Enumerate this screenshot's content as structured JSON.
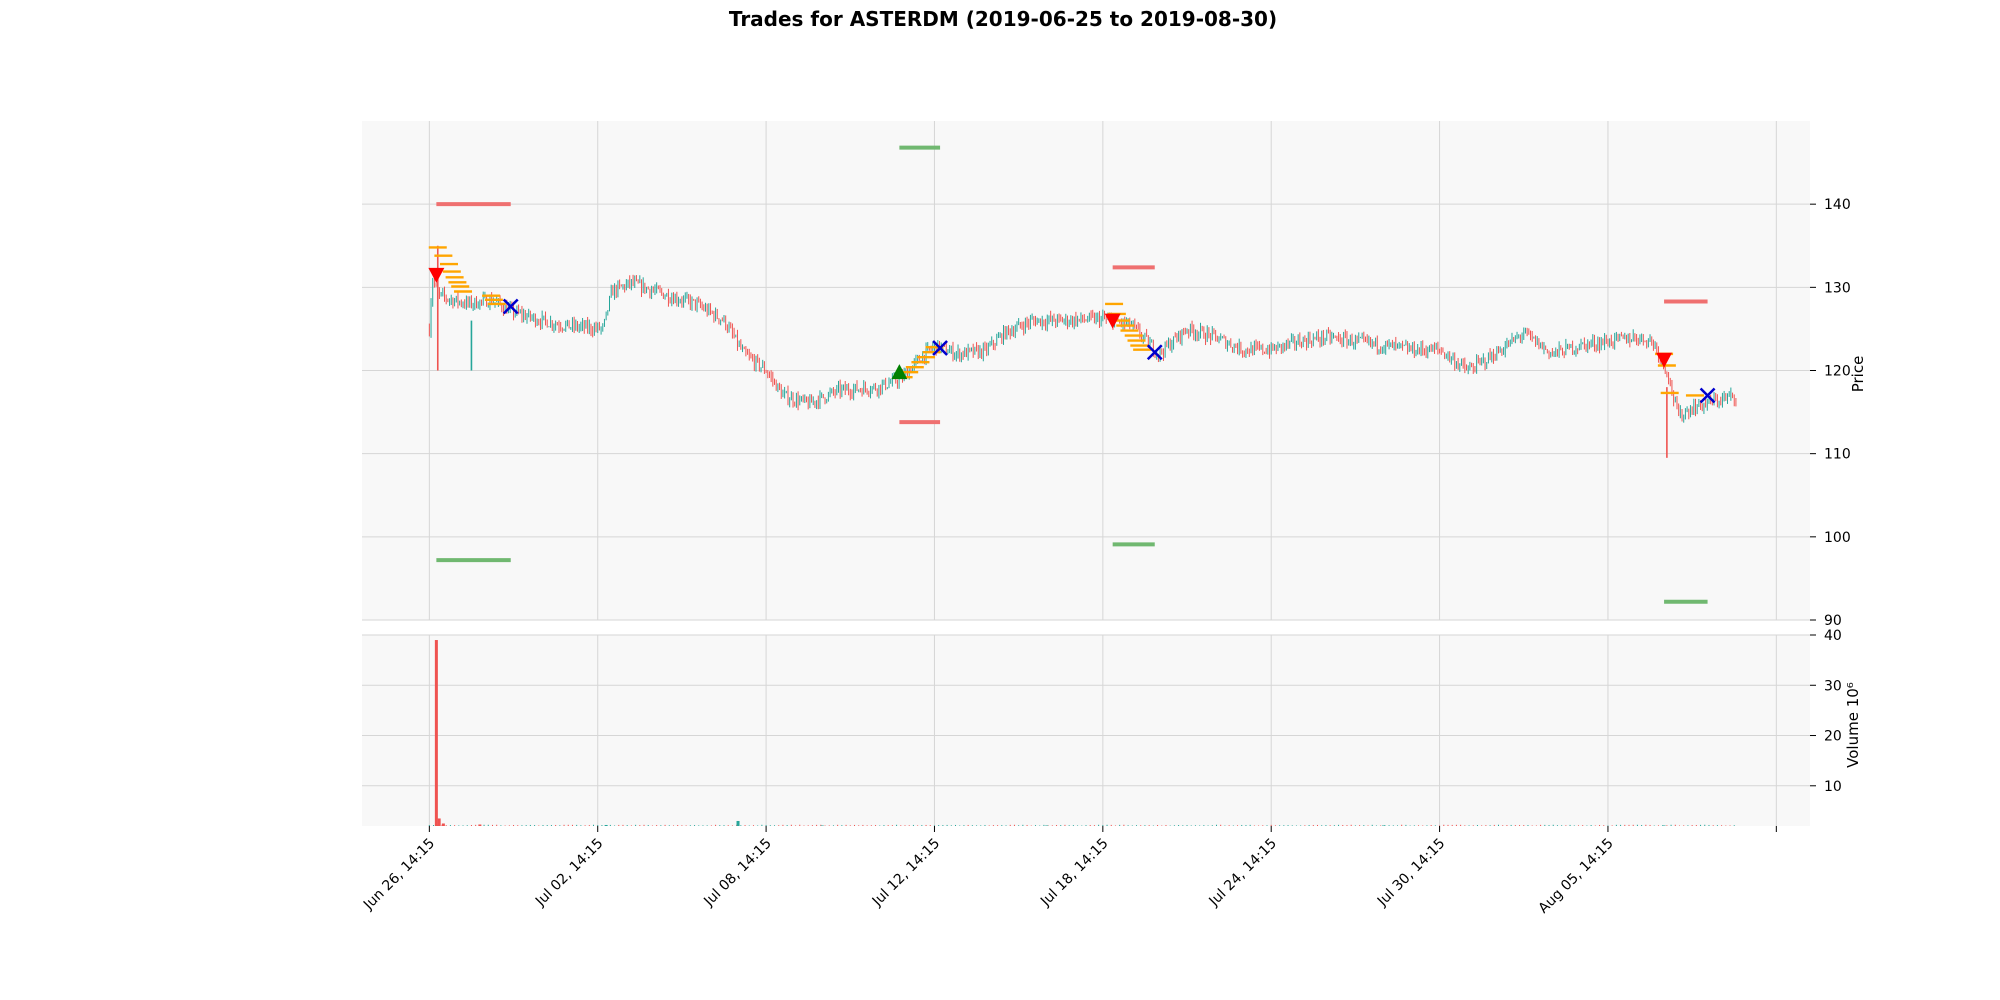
{
  "chart_data": {
    "type": "candlestick",
    "title": "Trades for ASTERDM (2019-06-25 to 2019-08-30)",
    "x_axis": {
      "ticks": [
        "Jun 26, 14:15",
        "Jul 02, 14:15",
        "Jul 08, 14:15",
        "Jul 12, 14:15",
        "Jul 18, 14:15",
        "Jul 24, 14:15",
        "Jul 30, 14:15",
        "Aug 05, 14:15",
        ""
      ],
      "tick_positions_days": [
        0,
        6,
        12,
        18,
        24,
        30,
        36,
        42,
        48
      ],
      "range_days": [
        -2.4,
        49.2
      ]
    },
    "price_panel": {
      "ylabel": "Price",
      "ylim": [
        90,
        150
      ],
      "yticks": [
        90,
        100,
        110,
        120,
        130,
        140
      ],
      "grid": true
    },
    "volume_panel": {
      "ylabel": "Volume  10⁶",
      "ylim": [
        2,
        40
      ],
      "yticks": [
        10,
        20,
        30,
        40
      ],
      "grid": true
    },
    "colors": {
      "up": "#26a69a",
      "down": "#ef5350",
      "entry_long": "#008000",
      "entry_short": "#ff0000",
      "exit": "#0000cd",
      "ladder": "#ffa500",
      "stop_loss": "#ef7070",
      "take_profit": "#70b870",
      "background": "#f8f8f8",
      "grid": "#d6d6d6"
    },
    "price_path": [
      [
        0,
        125
      ],
      [
        0.1,
        131
      ],
      [
        0.35,
        129
      ],
      [
        0.8,
        128.5
      ],
      [
        1.4,
        128
      ],
      [
        2.2,
        128.5
      ],
      [
        3.0,
        127
      ],
      [
        4.0,
        126
      ],
      [
        5.0,
        125.3
      ],
      [
        6.2,
        125
      ],
      [
        6.5,
        129.5
      ],
      [
        7.2,
        130.5
      ],
      [
        8.5,
        129
      ],
      [
        9.5,
        128
      ],
      [
        10.5,
        126
      ],
      [
        11.2,
        122
      ],
      [
        12.0,
        120
      ],
      [
        12.6,
        117
      ],
      [
        13.5,
        116
      ],
      [
        14.6,
        117.6
      ],
      [
        16.0,
        118
      ],
      [
        16.8,
        119
      ],
      [
        17.5,
        121.5
      ],
      [
        18.0,
        123
      ],
      [
        18.8,
        122
      ],
      [
        19.8,
        122.3
      ],
      [
        20.5,
        124.5
      ],
      [
        21.5,
        126
      ],
      [
        22.5,
        126
      ],
      [
        24.0,
        126.2
      ],
      [
        25.0,
        125.5
      ],
      [
        26.0,
        122
      ],
      [
        27.0,
        125
      ],
      [
        28.0,
        124
      ],
      [
        29.0,
        122.5
      ],
      [
        30.0,
        122.5
      ],
      [
        31.0,
        123.5
      ],
      [
        32.0,
        124
      ],
      [
        33.0,
        123.5
      ],
      [
        34.0,
        123
      ],
      [
        35.0,
        122.5
      ],
      [
        36.0,
        122.5
      ],
      [
        37.0,
        120
      ],
      [
        38.0,
        122
      ],
      [
        39.0,
        124.5
      ],
      [
        40.0,
        122
      ],
      [
        41.0,
        123
      ],
      [
        42.0,
        123.5
      ],
      [
        43.0,
        124
      ],
      [
        43.6,
        123.5
      ],
      [
        44.1,
        120
      ],
      [
        44.5,
        114.5
      ],
      [
        45.0,
        115.5
      ],
      [
        46.0,
        116.5
      ],
      [
        46.6,
        117
      ]
    ],
    "volume_bars": [
      [
        0.25,
        39,
        "down"
      ],
      [
        0.35,
        3.5,
        "down"
      ],
      [
        0.5,
        2.5,
        "down"
      ],
      [
        1.8,
        2.3,
        "down"
      ],
      [
        11.0,
        3.0,
        "up"
      ],
      [
        6.3,
        2.2,
        "up"
      ],
      [
        14.0,
        2.1,
        "up"
      ],
      [
        22.0,
        2.1,
        "up"
      ],
      [
        34.0,
        2.1,
        "up"
      ],
      [
        44.0,
        2.1,
        "up"
      ]
    ],
    "price_spikes": [
      [
        1.5,
        120,
        126,
        "up"
      ],
      [
        0.3,
        120,
        135,
        "down"
      ],
      [
        44.1,
        109.5,
        118,
        "down"
      ]
    ],
    "trades": [
      {
        "side": "short",
        "entry_day": 0.25,
        "entry_price": 131.5,
        "exit_day": 2.9,
        "exit_price": 127.7,
        "stop_loss": 140,
        "take_profit": 97.2,
        "ladder": [
          [
            0.3,
            134.8
          ],
          [
            0.5,
            133.8
          ],
          [
            0.7,
            132.8
          ],
          [
            0.8,
            131.9
          ],
          [
            0.9,
            131.2
          ],
          [
            1.0,
            130.6
          ],
          [
            1.1,
            130.1
          ],
          [
            1.2,
            129.5
          ],
          [
            2.2,
            129.0
          ],
          [
            2.3,
            128.5
          ],
          [
            2.4,
            128.0
          ]
        ]
      },
      {
        "side": "long",
        "entry_day": 16.75,
        "entry_price": 119.8,
        "exit_day": 18.2,
        "exit_price": 122.7,
        "stop_loss": 113.8,
        "take_profit": 146.8,
        "ladder": [
          [
            16.9,
            119.2
          ],
          [
            17.1,
            119.8
          ],
          [
            17.3,
            120.4
          ],
          [
            17.5,
            121.0
          ],
          [
            17.7,
            121.6
          ],
          [
            17.9,
            122.2
          ],
          [
            18.0,
            122.8
          ]
        ]
      },
      {
        "side": "short",
        "entry_day": 24.35,
        "entry_price": 126.0,
        "exit_day": 25.85,
        "exit_price": 122.2,
        "stop_loss": 132.4,
        "take_profit": 99.1,
        "ladder": [
          [
            24.4,
            128.0
          ],
          [
            24.5,
            126.8
          ],
          [
            24.65,
            126.0
          ],
          [
            24.8,
            125.4
          ],
          [
            24.95,
            124.8
          ],
          [
            25.1,
            124.2
          ],
          [
            25.2,
            123.6
          ],
          [
            25.3,
            123.0
          ],
          [
            25.4,
            122.5
          ]
        ]
      },
      {
        "side": "short",
        "entry_day": 44.0,
        "entry_price": 121.3,
        "exit_day": 45.55,
        "exit_price": 117.0,
        "stop_loss": 128.3,
        "take_profit": 92.2,
        "ladder": [
          [
            44.0,
            122.0
          ],
          [
            44.1,
            120.6
          ],
          [
            44.2,
            117.3
          ],
          [
            45.1,
            117.0
          ]
        ]
      }
    ]
  }
}
